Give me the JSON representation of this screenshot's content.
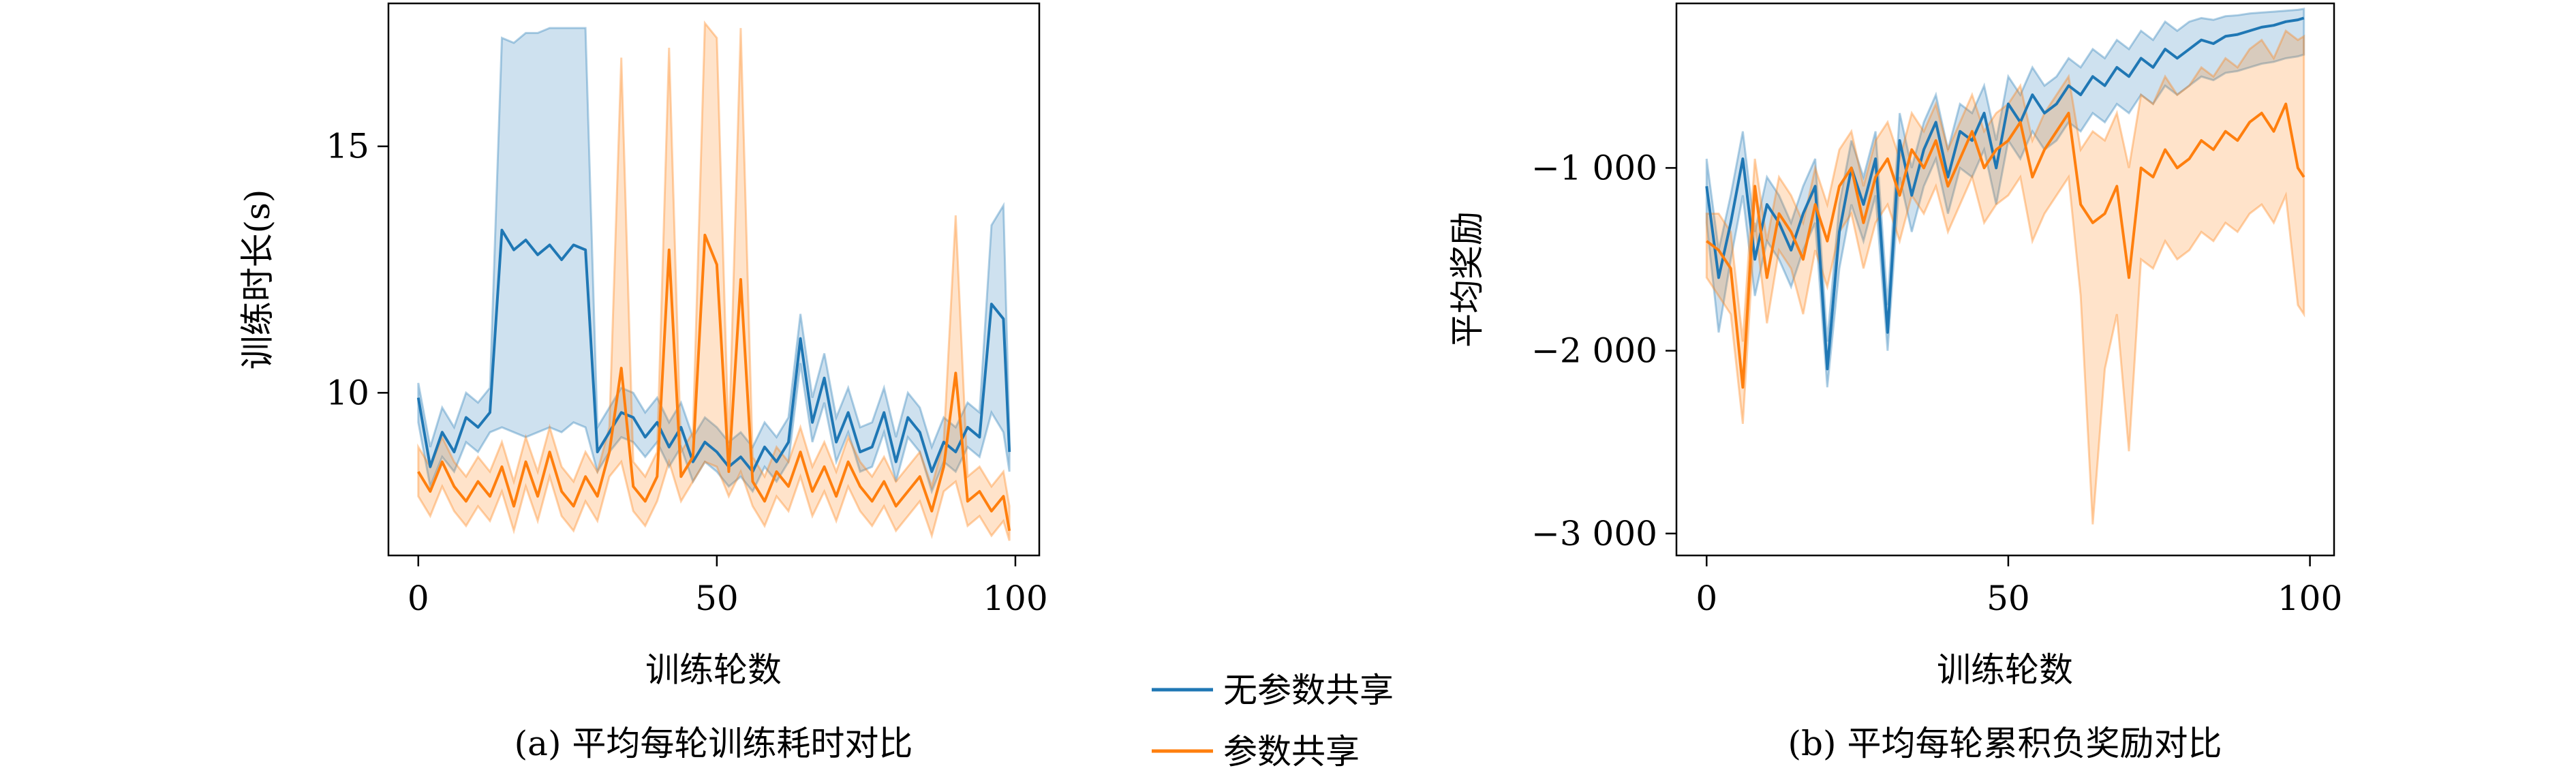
{
  "figure": {
    "caption_a": "(a) 平均每轮训练耗时对比",
    "caption_b": "(b) 平均每轮累积负奖励对比",
    "legend": [
      {
        "name": "无参数共享",
        "color": "#1f77b4"
      },
      {
        "name": "参数共享",
        "color": "#ff7f0e"
      }
    ]
  },
  "chart_data": [
    {
      "type": "line",
      "title": "",
      "xlabel": "训练轮数",
      "ylabel": "训练时长(s)",
      "xlim": [
        -5,
        104
      ],
      "ylim": [
        6.7,
        17.9
      ],
      "xticks": [
        0,
        50,
        100
      ],
      "yticks": [
        10,
        15
      ],
      "xtick_labels": [
        "0",
        "50",
        "100"
      ],
      "ytick_labels": [
        "10",
        "15"
      ],
      "grid": false,
      "band": "shaded min–max range around each mean line",
      "series": [
        {
          "name": "无参数共享",
          "color": "#1f77b4",
          "x": [
            0,
            2,
            4,
            6,
            8,
            10,
            12,
            14,
            16,
            18,
            20,
            22,
            24,
            26,
            28,
            30,
            32,
            34,
            36,
            38,
            40,
            42,
            44,
            46,
            48,
            50,
            52,
            54,
            56,
            58,
            60,
            62,
            64,
            66,
            68,
            70,
            72,
            74,
            76,
            78,
            80,
            82,
            84,
            86,
            88,
            90,
            92,
            94,
            96,
            98,
            99
          ],
          "y": [
            9.9,
            8.5,
            9.2,
            8.8,
            9.5,
            9.3,
            9.6,
            13.3,
            12.9,
            13.1,
            12.8,
            13.0,
            12.7,
            13.0,
            12.9,
            8.8,
            9.2,
            9.6,
            9.5,
            9.1,
            9.4,
            8.9,
            9.3,
            8.6,
            9.0,
            8.8,
            8.5,
            8.7,
            8.4,
            8.9,
            8.6,
            9.0,
            11.1,
            9.4,
            10.3,
            9.0,
            9.6,
            8.8,
            8.9,
            9.6,
            8.6,
            9.5,
            9.2,
            8.4,
            9.0,
            8.8,
            9.3,
            9.1,
            11.8,
            11.5,
            8.8
          ],
          "low": [
            9.4,
            8.1,
            8.7,
            8.4,
            9.0,
            8.8,
            9.2,
            9.3,
            9.2,
            9.1,
            9.2,
            9.3,
            9.2,
            9.4,
            9.3,
            8.4,
            8.8,
            9.1,
            9.0,
            8.7,
            9.0,
            8.5,
            8.9,
            8.2,
            8.6,
            8.4,
            8.1,
            8.3,
            8.0,
            8.5,
            8.2,
            8.6,
            10.6,
            9.0,
            9.8,
            8.6,
            9.2,
            8.4,
            8.5,
            9.2,
            8.2,
            9.1,
            8.8,
            8.0,
            8.6,
            8.4,
            8.9,
            8.7,
            9.6,
            9.2,
            8.4
          ],
          "high": [
            10.2,
            8.9,
            9.7,
            9.3,
            10.0,
            9.8,
            10.1,
            17.2,
            17.1,
            17.3,
            17.3,
            17.4,
            17.4,
            17.4,
            17.4,
            9.3,
            9.7,
            10.1,
            10.0,
            9.6,
            9.9,
            9.4,
            9.8,
            9.1,
            9.5,
            9.3,
            9.0,
            9.2,
            8.9,
            9.4,
            9.1,
            9.5,
            11.6,
            9.9,
            10.8,
            9.5,
            10.1,
            9.3,
            9.4,
            10.1,
            9.1,
            10.0,
            9.7,
            8.9,
            9.5,
            9.3,
            9.8,
            9.6,
            13.4,
            13.8,
            9.2
          ]
        },
        {
          "name": "参数共享",
          "color": "#ff7f0e",
          "x": [
            0,
            2,
            4,
            6,
            8,
            10,
            12,
            14,
            16,
            18,
            20,
            22,
            24,
            26,
            28,
            30,
            32,
            34,
            36,
            38,
            40,
            42,
            44,
            46,
            48,
            50,
            52,
            54,
            56,
            58,
            60,
            62,
            64,
            66,
            68,
            70,
            72,
            74,
            76,
            78,
            80,
            82,
            84,
            86,
            88,
            90,
            92,
            94,
            96,
            98,
            99
          ],
          "y": [
            8.4,
            8.0,
            8.6,
            8.1,
            7.8,
            8.2,
            7.9,
            8.5,
            7.7,
            8.6,
            7.9,
            8.8,
            8.0,
            7.7,
            8.3,
            7.9,
            8.8,
            10.5,
            8.1,
            7.8,
            8.3,
            12.9,
            8.3,
            8.7,
            13.2,
            12.6,
            8.4,
            12.3,
            8.2,
            7.8,
            8.4,
            8.1,
            8.8,
            8.0,
            8.5,
            7.9,
            8.6,
            8.1,
            7.8,
            8.2,
            7.7,
            8.0,
            8.3,
            7.6,
            8.5,
            10.4,
            7.8,
            8.0,
            7.6,
            7.9,
            7.2
          ],
          "low": [
            7.9,
            7.5,
            8.1,
            7.6,
            7.3,
            7.7,
            7.4,
            8.0,
            7.2,
            8.1,
            7.4,
            8.3,
            7.5,
            7.2,
            7.8,
            7.4,
            8.3,
            8.6,
            7.6,
            7.3,
            7.8,
            8.6,
            7.8,
            8.2,
            8.6,
            8.5,
            7.9,
            8.4,
            7.7,
            7.3,
            7.9,
            7.6,
            8.3,
            7.5,
            8.0,
            7.4,
            8.1,
            7.6,
            7.3,
            7.7,
            7.2,
            7.5,
            7.8,
            7.1,
            8.0,
            8.2,
            7.3,
            7.5,
            7.1,
            7.4,
            7.0
          ],
          "high": [
            8.9,
            8.5,
            9.1,
            8.6,
            8.3,
            8.7,
            8.4,
            9.0,
            8.2,
            9.1,
            8.4,
            9.3,
            8.5,
            8.2,
            8.8,
            8.4,
            9.3,
            16.8,
            8.6,
            8.3,
            8.8,
            17.0,
            8.8,
            9.2,
            17.5,
            17.2,
            8.9,
            17.4,
            8.7,
            8.3,
            8.9,
            8.6,
            9.3,
            8.5,
            9.0,
            8.4,
            9.1,
            8.6,
            8.3,
            8.7,
            8.2,
            8.5,
            8.8,
            8.1,
            9.0,
            13.6,
            8.3,
            8.5,
            8.1,
            8.4,
            7.7
          ]
        }
      ]
    },
    {
      "type": "line",
      "title": "",
      "xlabel": "训练轮数",
      "ylabel": "平均奖励",
      "xlim": [
        -5,
        104
      ],
      "ylim": [
        -3120,
        -100
      ],
      "xticks": [
        0,
        50,
        100
      ],
      "yticks": [
        -3000,
        -2000,
        -1000
      ],
      "xtick_labels": [
        "0",
        "50",
        "100"
      ],
      "ytick_labels": [
        "−3 000",
        "−2 000",
        "−1 000"
      ],
      "grid": false,
      "band": "shaded min–max range around each mean line",
      "series": [
        {
          "name": "无参数共享",
          "color": "#1f77b4",
          "x": [
            0,
            2,
            4,
            6,
            8,
            10,
            12,
            14,
            16,
            18,
            20,
            22,
            24,
            26,
            28,
            30,
            32,
            34,
            36,
            38,
            40,
            42,
            44,
            46,
            48,
            50,
            52,
            54,
            56,
            58,
            60,
            62,
            64,
            66,
            68,
            70,
            72,
            74,
            76,
            78,
            80,
            82,
            84,
            86,
            88,
            90,
            92,
            94,
            96,
            98,
            99
          ],
          "y": [
            -1100,
            -1600,
            -1300,
            -950,
            -1500,
            -1200,
            -1300,
            -1450,
            -1250,
            -1100,
            -2100,
            -1350,
            -1000,
            -1200,
            -950,
            -1900,
            -850,
            -1150,
            -900,
            -750,
            -1050,
            -800,
            -850,
            -700,
            -1000,
            -650,
            -750,
            -600,
            -700,
            -650,
            -550,
            -600,
            -500,
            -550,
            -450,
            -500,
            -400,
            -450,
            -350,
            -400,
            -350,
            -300,
            -320,
            -280,
            -270,
            -250,
            -230,
            -220,
            -200,
            -190,
            -180
          ],
          "low": [
            -1300,
            -1900,
            -1500,
            -1150,
            -1700,
            -1400,
            -1500,
            -1650,
            -1450,
            -1300,
            -2200,
            -1550,
            -1200,
            -1400,
            -1150,
            -2000,
            -1050,
            -1350,
            -1100,
            -950,
            -1250,
            -1000,
            -1050,
            -900,
            -1200,
            -850,
            -950,
            -800,
            -900,
            -850,
            -750,
            -800,
            -700,
            -750,
            -650,
            -700,
            -600,
            -650,
            -550,
            -600,
            -550,
            -500,
            -520,
            -480,
            -470,
            -450,
            -430,
            -420,
            -400,
            -390,
            -380
          ],
          "high": [
            -950,
            -1450,
            -1150,
            -800,
            -1350,
            -1050,
            -1150,
            -1300,
            -1100,
            -950,
            -1950,
            -1200,
            -850,
            -1050,
            -800,
            -1750,
            -700,
            -1000,
            -750,
            -600,
            -900,
            -650,
            -700,
            -550,
            -850,
            -500,
            -600,
            -450,
            -550,
            -500,
            -400,
            -450,
            -350,
            -400,
            -300,
            -350,
            -250,
            -300,
            -200,
            -250,
            -200,
            -180,
            -190,
            -170,
            -165,
            -155,
            -150,
            -145,
            -140,
            -135,
            -130
          ]
        },
        {
          "name": "参数共享",
          "color": "#ff7f0e",
          "x": [
            0,
            2,
            4,
            6,
            8,
            10,
            12,
            14,
            16,
            18,
            20,
            22,
            24,
            26,
            28,
            30,
            32,
            34,
            36,
            38,
            40,
            42,
            44,
            46,
            48,
            50,
            52,
            54,
            56,
            58,
            60,
            62,
            64,
            66,
            68,
            70,
            72,
            74,
            76,
            78,
            80,
            82,
            84,
            86,
            88,
            90,
            92,
            94,
            96,
            98,
            99
          ],
          "y": [
            -1400,
            -1450,
            -1550,
            -2200,
            -1100,
            -1600,
            -1250,
            -1350,
            -1500,
            -1200,
            -1400,
            -1100,
            -1000,
            -1300,
            -1050,
            -950,
            -1150,
            -900,
            -1000,
            -850,
            -1100,
            -950,
            -800,
            -1000,
            -900,
            -850,
            -750,
            -1050,
            -900,
            -800,
            -700,
            -1200,
            -1300,
            -1250,
            -1100,
            -1600,
            -1000,
            -1050,
            -900,
            -1000,
            -950,
            -850,
            -900,
            -800,
            -850,
            -750,
            -700,
            -800,
            -650,
            -1000,
            -1050
          ],
          "low": [
            -1600,
            -1700,
            -1800,
            -2400,
            -1300,
            -1850,
            -1450,
            -1550,
            -1800,
            -1450,
            -1650,
            -1350,
            -1250,
            -1550,
            -1300,
            -1200,
            -1400,
            -1150,
            -1250,
            -1100,
            -1350,
            -1200,
            -1050,
            -1300,
            -1200,
            -1150,
            -1050,
            -1400,
            -1250,
            -1150,
            -1050,
            -1700,
            -2950,
            -2100,
            -1800,
            -2550,
            -1500,
            -1550,
            -1400,
            -1500,
            -1450,
            -1350,
            -1400,
            -1300,
            -1350,
            -1250,
            -1200,
            -1300,
            -1150,
            -1750,
            -1800
          ],
          "high": [
            -1250,
            -1250,
            -1350,
            -1950,
            -950,
            -1400,
            -1050,
            -1150,
            -1300,
            -1000,
            -1200,
            -900,
            -800,
            -1100,
            -850,
            -750,
            -950,
            -700,
            -800,
            -650,
            -900,
            -750,
            -600,
            -800,
            -700,
            -650,
            -550,
            -850,
            -700,
            -600,
            -500,
            -900,
            -800,
            -850,
            -700,
            -1000,
            -600,
            -650,
            -500,
            -600,
            -550,
            -450,
            -500,
            -400,
            -450,
            -350,
            -300,
            -400,
            -250,
            -300,
            -280
          ]
        }
      ]
    }
  ]
}
